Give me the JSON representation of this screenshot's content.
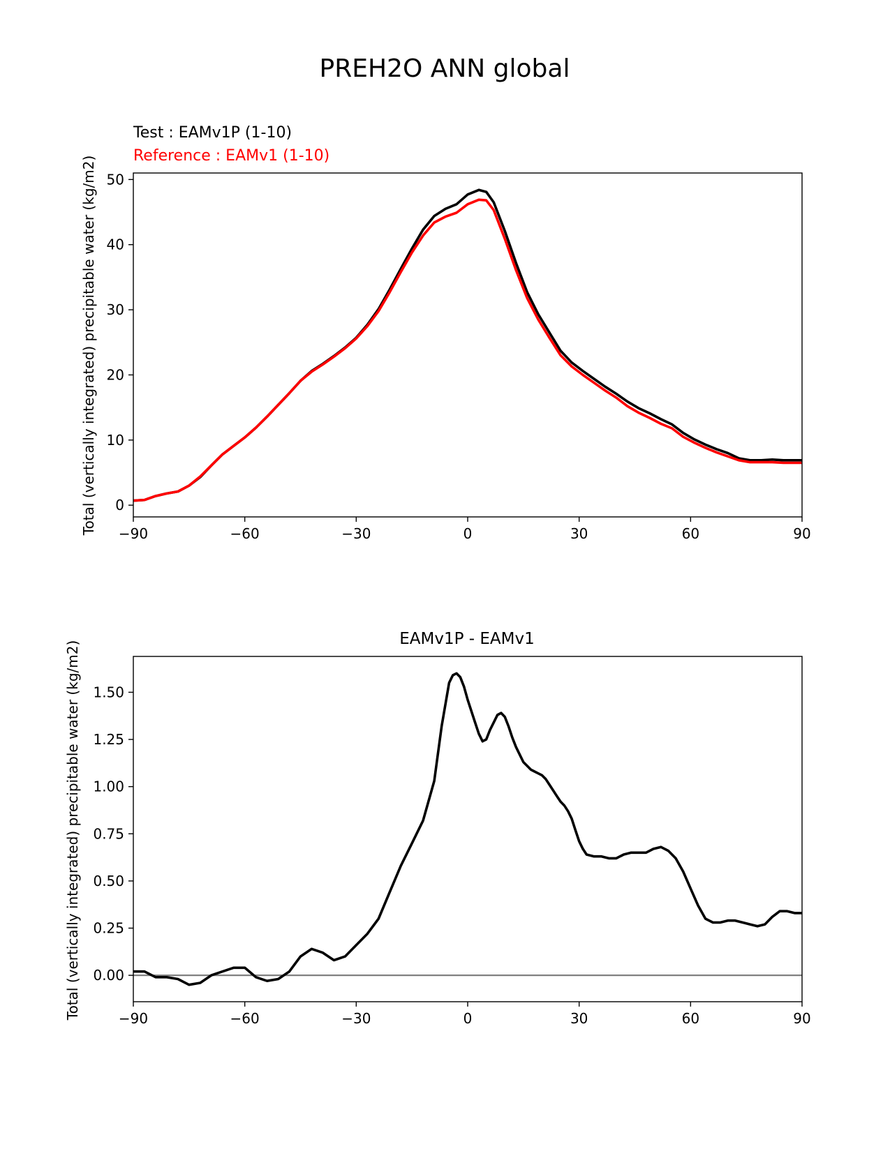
{
  "figure": {
    "title": "PREH2O ANN global"
  },
  "chart_data": [
    {
      "type": "line",
      "title": "",
      "subtitle_test": "Test : EAMv1P (1-10)",
      "subtitle_reference": "Reference : EAMv1 (1-10)",
      "xlabel": "",
      "ylabel": "Total (vertically integrated) precipitable water (kg/m2)",
      "xlim": [
        -90,
        90
      ],
      "ylim": [
        -1.8,
        51.0
      ],
      "xticks": [
        -90,
        -60,
        -30,
        0,
        30,
        60,
        90
      ],
      "xtick_labels": [
        "−90",
        "−60",
        "−30",
        "0",
        "30",
        "60",
        "90"
      ],
      "yticks": [
        0,
        10,
        20,
        30,
        40,
        50
      ],
      "ytick_labels": [
        "0",
        "10",
        "20",
        "30",
        "40",
        "50"
      ],
      "grid": false,
      "series": [
        {
          "name": "Test : EAMv1P (1-10)",
          "color": "#000000",
          "x": [
            -90,
            -87,
            -84,
            -81,
            -78,
            -75,
            -72,
            -69,
            -66,
            -63,
            -60,
            -57,
            -54,
            -51,
            -48,
            -45,
            -42,
            -39,
            -36,
            -33,
            -30,
            -27,
            -24,
            -21,
            -18,
            -15,
            -12,
            -9,
            -6,
            -3,
            0,
            3,
            5,
            7,
            10,
            13,
            16,
            19,
            22,
            25,
            28,
            31,
            34,
            37,
            40,
            43,
            46,
            49,
            52,
            55,
            58,
            61,
            64,
            67,
            70,
            73,
            76,
            79,
            82,
            85,
            88,
            90
          ],
          "y": [
            0.7,
            0.8,
            1.4,
            1.8,
            2.1,
            3.0,
            4.3,
            6.1,
            7.8,
            9.1,
            10.4,
            11.9,
            13.6,
            15.4,
            17.2,
            19.1,
            20.6,
            21.7,
            22.9,
            24.2,
            25.7,
            27.7,
            30.1,
            33.1,
            36.3,
            39.4,
            42.3,
            44.4,
            45.5,
            46.2,
            47.7,
            48.4,
            48.1,
            46.5,
            42.1,
            37.2,
            32.7,
            29.3,
            26.5,
            23.7,
            21.9,
            20.6,
            19.4,
            18.2,
            17.1,
            15.9,
            14.9,
            14.1,
            13.2,
            12.4,
            11.1,
            10.1,
            9.3,
            8.6,
            8.0,
            7.2,
            6.9,
            6.9,
            7.0,
            6.9,
            6.9,
            6.9
          ]
        },
        {
          "name": "Reference : EAMv1 (1-10)",
          "color": "#ff0000",
          "x": [
            -90,
            -87,
            -84,
            -81,
            -78,
            -75,
            -72,
            -69,
            -66,
            -63,
            -60,
            -57,
            -54,
            -51,
            -48,
            -45,
            -42,
            -39,
            -36,
            -33,
            -30,
            -27,
            -24,
            -21,
            -18,
            -15,
            -12,
            -9,
            -6,
            -3,
            0,
            3,
            5,
            7,
            10,
            13,
            16,
            19,
            22,
            25,
            28,
            31,
            34,
            37,
            40,
            43,
            46,
            49,
            52,
            55,
            58,
            61,
            64,
            67,
            70,
            73,
            76,
            79,
            82,
            85,
            88,
            90
          ],
          "y": [
            0.7,
            0.8,
            1.4,
            1.8,
            2.1,
            3.0,
            4.4,
            6.1,
            7.8,
            9.1,
            10.4,
            11.9,
            13.6,
            15.4,
            17.2,
            19.1,
            20.5,
            21.6,
            22.8,
            24.1,
            25.6,
            27.5,
            29.8,
            32.7,
            35.8,
            38.8,
            41.4,
            43.4,
            44.3,
            44.9,
            46.2,
            46.9,
            46.8,
            45.3,
            40.9,
            36.1,
            31.8,
            28.5,
            25.7,
            23.0,
            21.3,
            20.0,
            18.8,
            17.6,
            16.5,
            15.2,
            14.2,
            13.4,
            12.5,
            11.8,
            10.5,
            9.6,
            8.8,
            8.1,
            7.5,
            6.9,
            6.6,
            6.6,
            6.6,
            6.5,
            6.5,
            6.5
          ]
        }
      ]
    },
    {
      "type": "line",
      "title": "EAMv1P - EAMv1",
      "xlabel": "",
      "ylabel": "Total (vertically integrated) precipitable water (kg/m2)",
      "xlim": [
        -90,
        90
      ],
      "ylim": [
        -0.14,
        1.69
      ],
      "xticks": [
        -90,
        -60,
        -30,
        0,
        30,
        60,
        90
      ],
      "xtick_labels": [
        "−90",
        "−60",
        "−30",
        "0",
        "30",
        "60",
        "90"
      ],
      "yticks": [
        0.0,
        0.25,
        0.5,
        0.75,
        1.0,
        1.25,
        1.5
      ],
      "ytick_labels": [
        "0.00",
        "0.25",
        "0.50",
        "0.75",
        "1.00",
        "1.25",
        "1.50"
      ],
      "zero_line": {
        "y": 0,
        "color": "#808080"
      },
      "grid": false,
      "series": [
        {
          "name": "",
          "color": "#000000",
          "x": [
            -90,
            -87,
            -84,
            -81,
            -78,
            -75,
            -72,
            -69,
            -66,
            -63,
            -60,
            -57,
            -54,
            -51,
            -48,
            -45,
            -42,
            -39,
            -36,
            -33,
            -30,
            -27,
            -24,
            -21,
            -18,
            -15,
            -12,
            -9,
            -7,
            -5,
            -4,
            -3,
            -2,
            -1,
            0,
            2,
            3,
            4,
            5,
            6,
            7,
            8,
            9,
            10,
            11,
            12,
            13,
            14,
            15,
            16,
            17,
            18,
            19,
            20,
            21,
            22,
            23,
            24,
            25,
            26,
            27,
            28,
            29,
            30,
            31,
            32,
            34,
            36,
            38,
            40,
            42,
            44,
            46,
            48,
            50,
            52,
            54,
            56,
            58,
            60,
            62,
            64,
            66,
            68,
            70,
            72,
            74,
            76,
            78,
            80,
            82,
            84,
            86,
            88,
            90
          ],
          "y": [
            0.02,
            0.02,
            -0.01,
            -0.01,
            -0.02,
            -0.05,
            -0.04,
            0.0,
            0.02,
            0.04,
            0.04,
            -0.01,
            -0.03,
            -0.02,
            0.02,
            0.1,
            0.14,
            0.12,
            0.08,
            0.1,
            0.16,
            0.22,
            0.3,
            0.44,
            0.58,
            0.7,
            0.82,
            1.03,
            1.32,
            1.55,
            1.59,
            1.6,
            1.58,
            1.53,
            1.46,
            1.34,
            1.28,
            1.24,
            1.25,
            1.3,
            1.34,
            1.38,
            1.39,
            1.37,
            1.32,
            1.26,
            1.21,
            1.17,
            1.13,
            1.11,
            1.09,
            1.08,
            1.07,
            1.06,
            1.04,
            1.01,
            0.98,
            0.95,
            0.92,
            0.9,
            0.87,
            0.83,
            0.77,
            0.71,
            0.67,
            0.64,
            0.63,
            0.63,
            0.62,
            0.62,
            0.64,
            0.65,
            0.65,
            0.65,
            0.67,
            0.68,
            0.66,
            0.62,
            0.55,
            0.46,
            0.37,
            0.3,
            0.28,
            0.28,
            0.29,
            0.29,
            0.28,
            0.27,
            0.26,
            0.27,
            0.31,
            0.34,
            0.34,
            0.33,
            0.33
          ]
        }
      ]
    }
  ]
}
